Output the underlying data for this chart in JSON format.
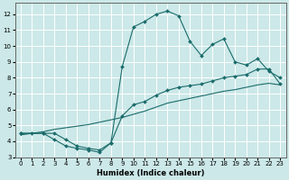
{
  "xlabel": "Humidex (Indice chaleur)",
  "bg_color": "#cce8e8",
  "grid_color": "#ffffff",
  "line_color": "#1a6b6b",
  "xlim": [
    -0.5,
    23.5
  ],
  "ylim": [
    3,
    12.7
  ],
  "xticks": [
    0,
    1,
    2,
    3,
    4,
    5,
    6,
    7,
    8,
    9,
    10,
    11,
    12,
    13,
    14,
    15,
    16,
    17,
    18,
    19,
    20,
    21,
    22,
    23
  ],
  "yticks": [
    3,
    4,
    5,
    6,
    7,
    8,
    9,
    10,
    11,
    12
  ],
  "curve1_x": [
    0,
    1,
    2,
    3,
    4,
    5,
    6,
    7,
    8,
    9,
    10,
    11,
    12,
    13,
    14,
    15,
    16,
    17,
    18,
    19,
    20,
    21,
    22,
    23
  ],
  "curve1_y": [
    4.5,
    4.5,
    4.5,
    4.1,
    3.7,
    3.55,
    3.45,
    3.3,
    3.9,
    8.7,
    11.2,
    11.55,
    12.0,
    12.2,
    11.9,
    10.3,
    9.4,
    10.1,
    10.45,
    9.0,
    8.8,
    9.2,
    8.4,
    8.0
  ],
  "curve2_x": [
    0,
    2,
    3,
    4,
    5,
    6,
    7,
    8,
    9,
    10,
    11,
    12,
    13,
    14,
    15,
    16,
    17,
    18,
    19,
    20,
    21,
    22,
    23
  ],
  "curve2_y": [
    4.5,
    4.5,
    4.5,
    4.1,
    3.7,
    3.55,
    3.45,
    3.9,
    5.6,
    6.3,
    6.5,
    6.9,
    7.2,
    7.4,
    7.5,
    7.6,
    7.8,
    8.0,
    8.1,
    8.2,
    8.55,
    8.55,
    7.6
  ],
  "curve3_x": [
    0,
    1,
    2,
    3,
    4,
    5,
    6,
    7,
    8,
    9,
    10,
    11,
    12,
    13,
    14,
    15,
    16,
    17,
    18,
    19,
    20,
    21,
    22,
    23
  ],
  "curve3_y": [
    4.4,
    4.5,
    4.6,
    4.75,
    4.85,
    4.95,
    5.05,
    5.2,
    5.35,
    5.5,
    5.7,
    5.9,
    6.15,
    6.4,
    6.55,
    6.7,
    6.85,
    7.0,
    7.15,
    7.25,
    7.4,
    7.55,
    7.65,
    7.55
  ]
}
